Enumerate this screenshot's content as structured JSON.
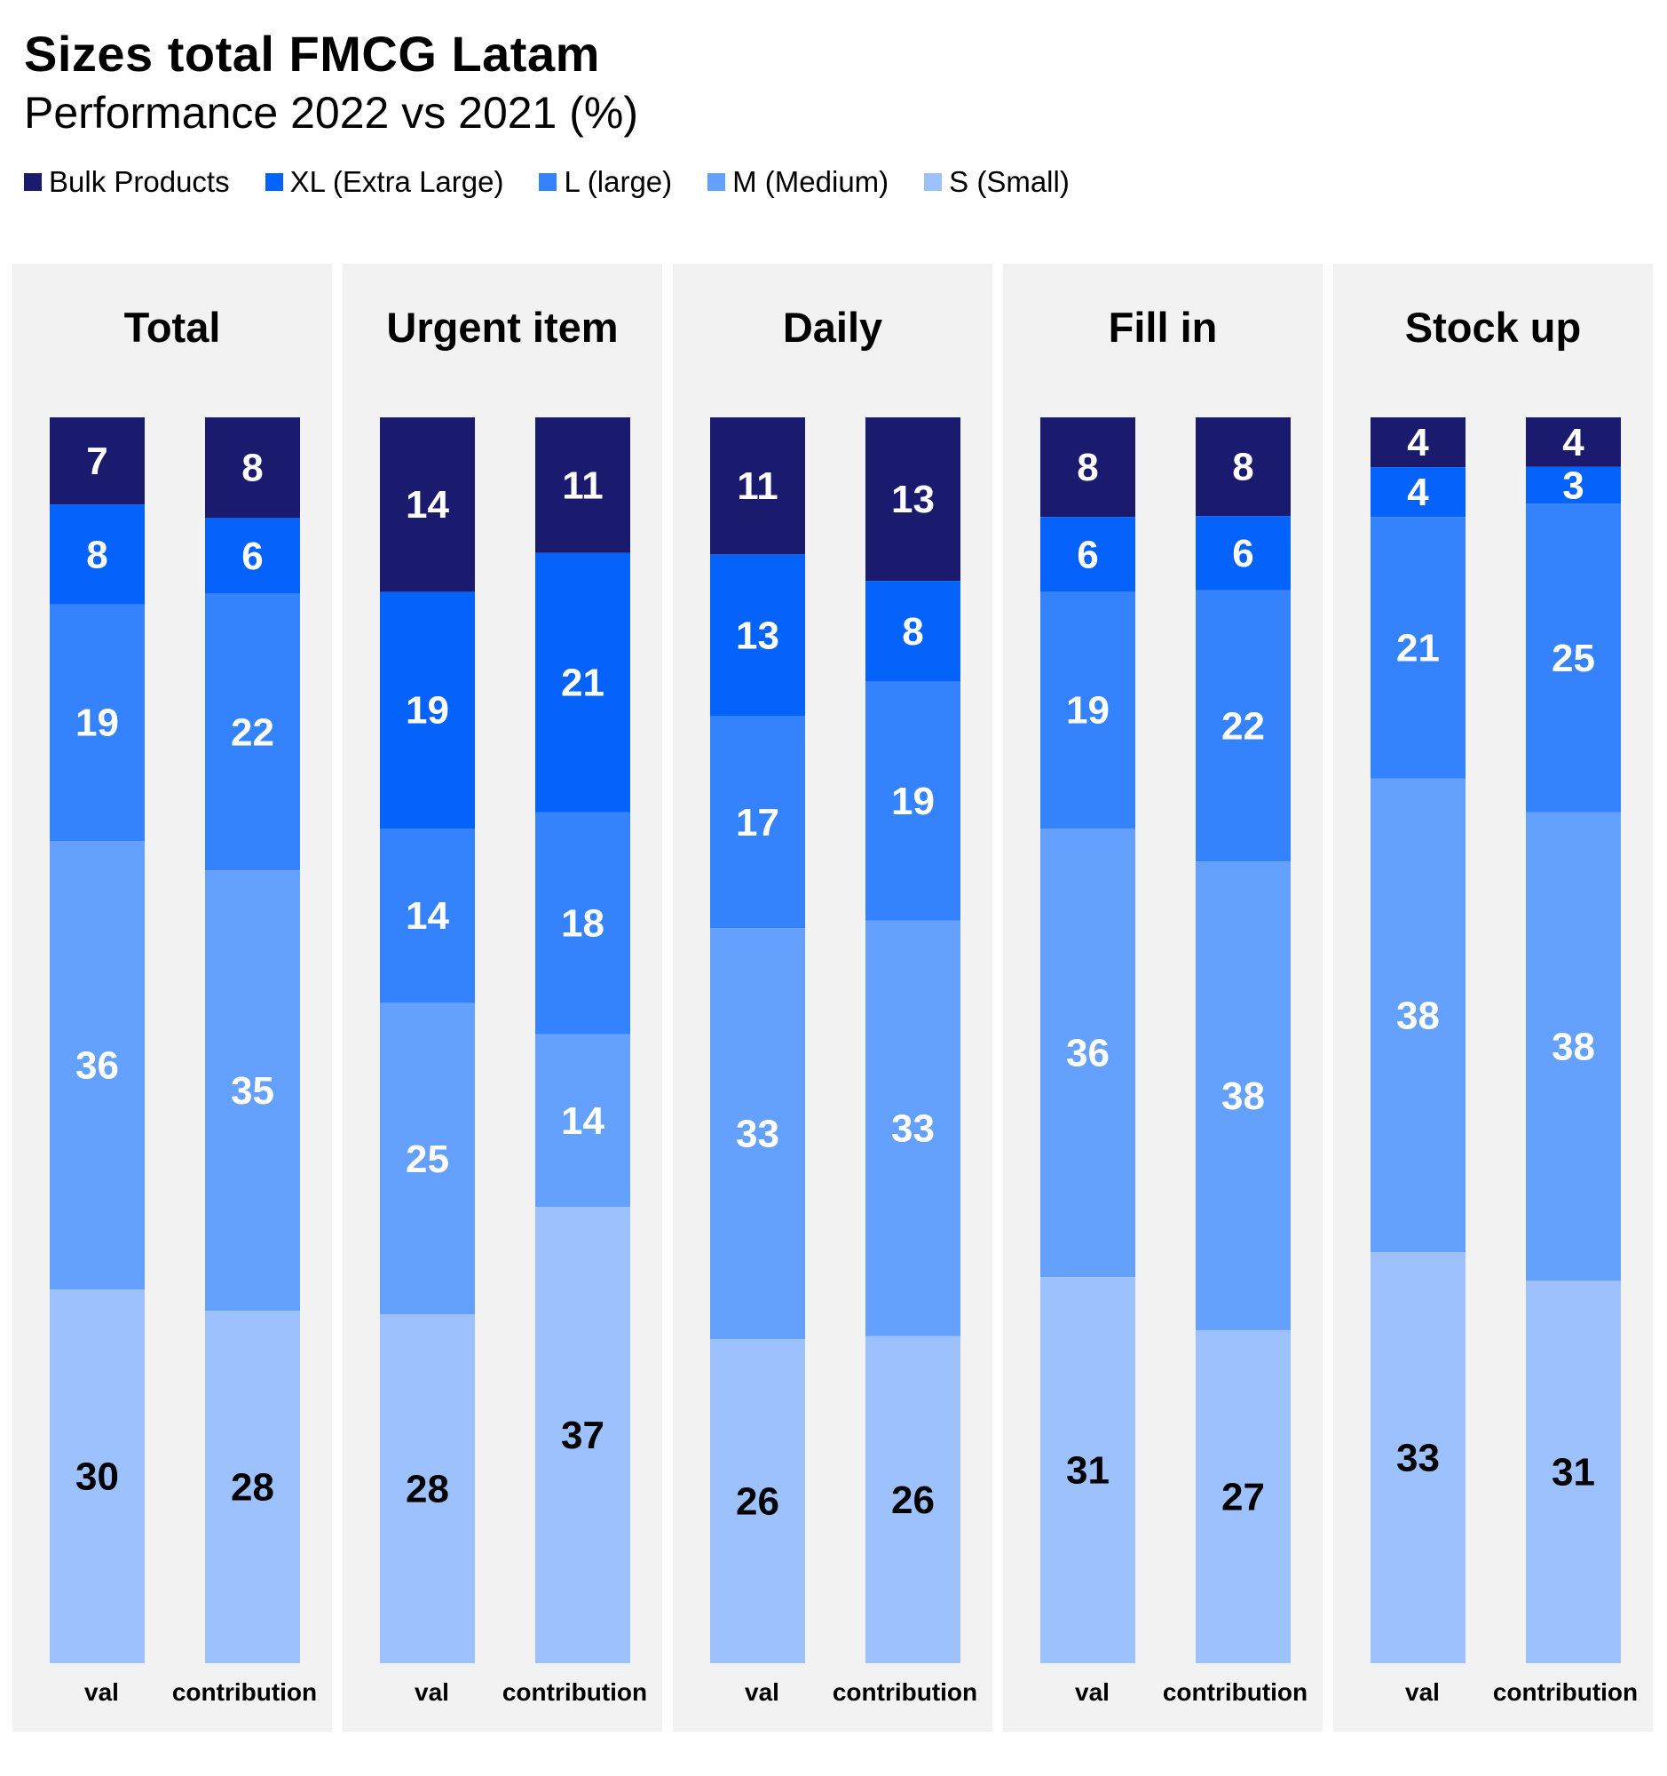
{
  "chart_data": {
    "type": "bar",
    "stacked": true,
    "title": "Sizes total FMCG Latam",
    "subtitle": "Performance 2022 vs 2021 (%)",
    "legend_position": "top-left",
    "series": [
      {
        "name": "Bulk Products",
        "color": "#1a1a6e"
      },
      {
        "name": "XL (Extra Large)",
        "color": "#0563fc"
      },
      {
        "name": "L (large)",
        "color": "#3483fd"
      },
      {
        "name": "M (Medium)",
        "color": "#64a0fd"
      },
      {
        "name": "S (Small)",
        "color": "#9cc1fd"
      }
    ],
    "bar_labels": [
      "val",
      "contribution"
    ],
    "panels": [
      {
        "title": "Total",
        "bars": [
          {
            "label": "val",
            "values": [
              7,
              8,
              19,
              36,
              30
            ]
          },
          {
            "label": "contribution",
            "values": [
              8,
              6,
              22,
              35,
              28
            ]
          }
        ]
      },
      {
        "title": "Urgent item",
        "bars": [
          {
            "label": "val",
            "values": [
              14,
              19,
              14,
              25,
              28
            ]
          },
          {
            "label": "contribution",
            "values": [
              11,
              21,
              18,
              14,
              37
            ]
          }
        ]
      },
      {
        "title": "Daily",
        "bars": [
          {
            "label": "val",
            "values": [
              11,
              13,
              17,
              33,
              26
            ]
          },
          {
            "label": "contribution",
            "values": [
              13,
              8,
              19,
              33,
              26
            ]
          }
        ]
      },
      {
        "title": "Fill in",
        "bars": [
          {
            "label": "val",
            "values": [
              8,
              6,
              19,
              36,
              31
            ]
          },
          {
            "label": "contribution",
            "values": [
              8,
              6,
              22,
              38,
              27
            ]
          }
        ]
      },
      {
        "title": "Stock up",
        "bars": [
          {
            "label": "val",
            "values": [
              4,
              4,
              21,
              38,
              33
            ]
          },
          {
            "label": "contribution",
            "values": [
              4,
              3,
              25,
              38,
              31
            ]
          }
        ]
      }
    ],
    "label_colors": [
      "#ffffff",
      "#ffffff",
      "#ffffff",
      "#ffffff",
      "#000000"
    ],
    "panel_background": "#f2f2f2"
  }
}
